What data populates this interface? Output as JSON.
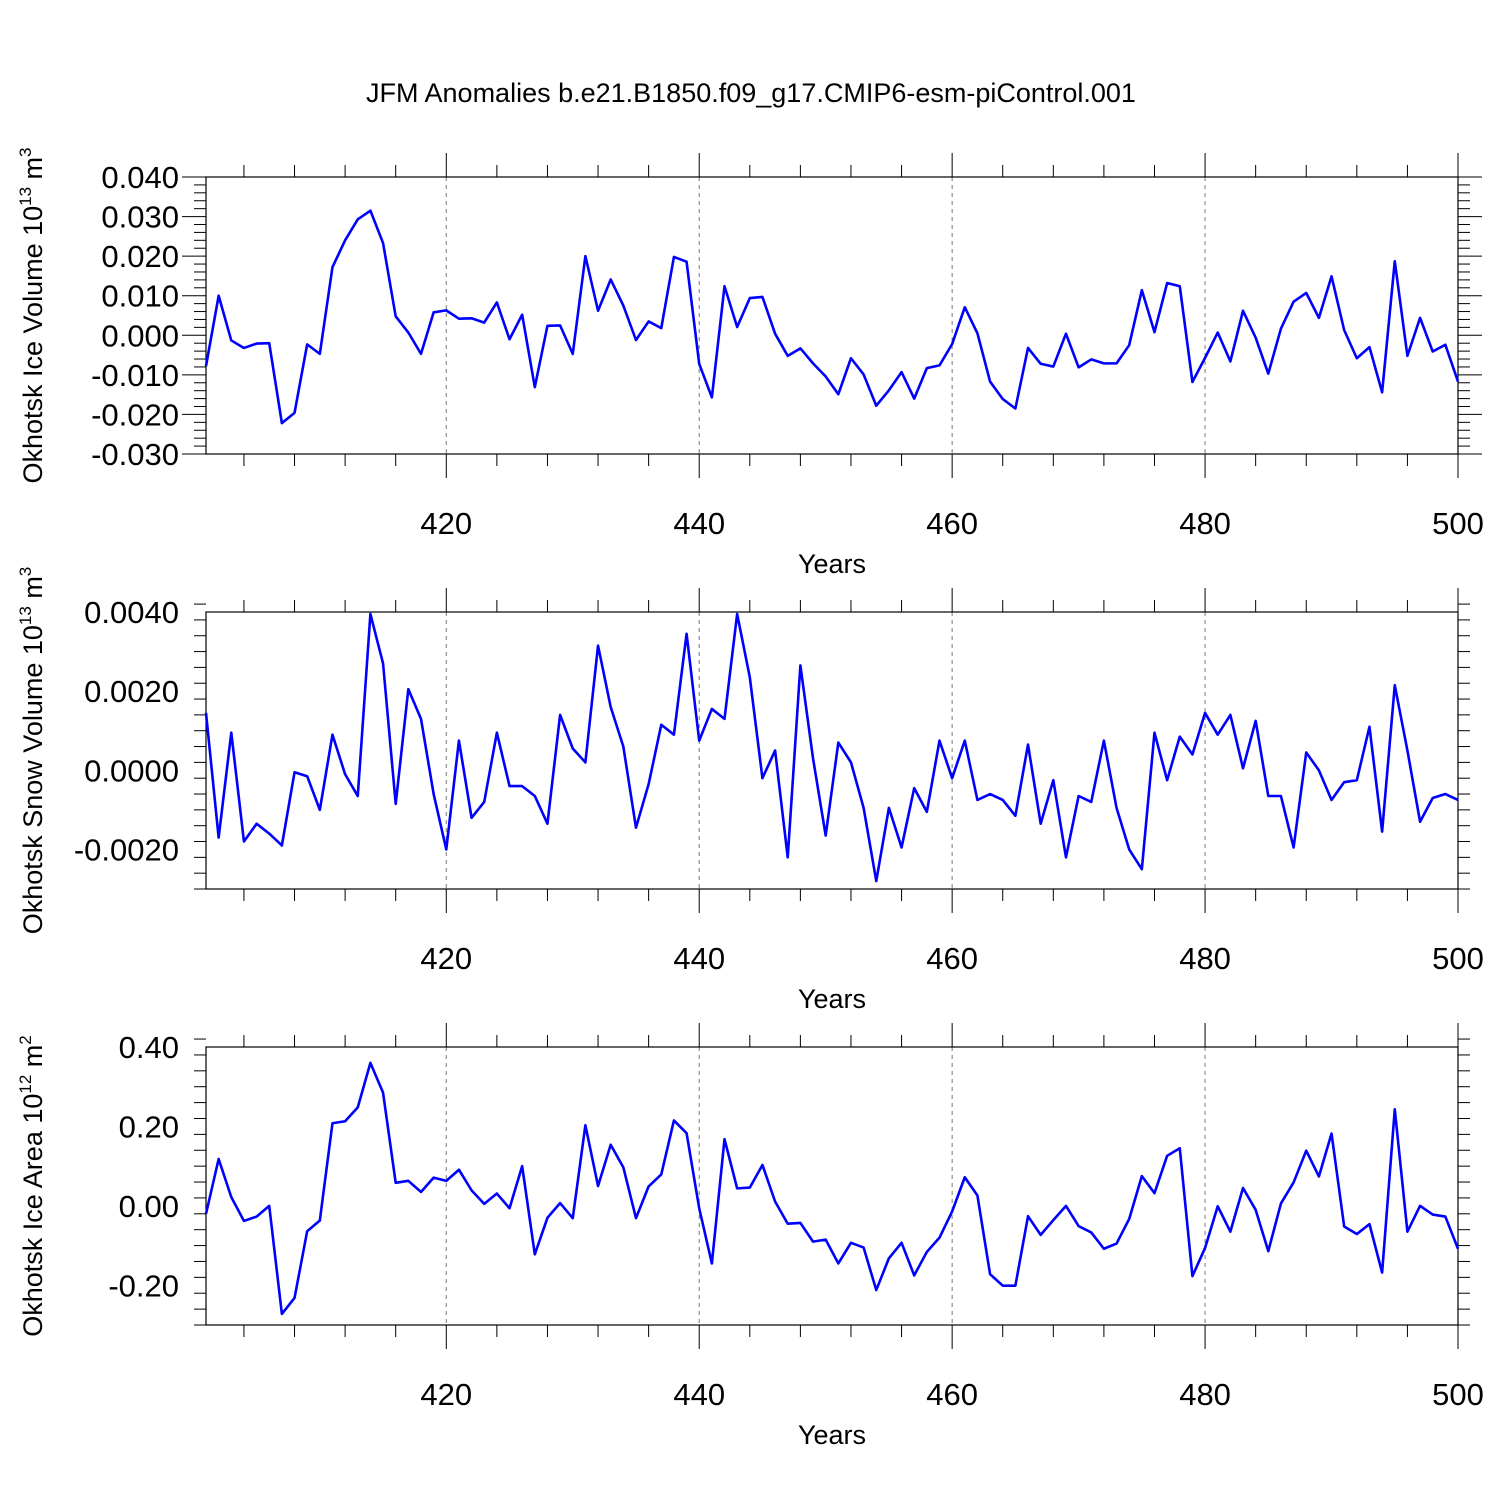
{
  "figure": {
    "title": "JFM Anomalies b.e21.B1850.f09_g17.CMIP6-esm-piControl.001",
    "line_color": "#0000ff"
  },
  "chart_data": [
    {
      "type": "line",
      "ylabel": "Okhotsk Ice Volume 10",
      "ylabel_exp": "13",
      "ylabel_unit": " m",
      "ylabel_unit_exp": "3",
      "xlabel": "Years",
      "xlim": [
        401,
        500
      ],
      "ylim": [
        -0.03,
        0.04
      ],
      "xticks": [
        420,
        440,
        460,
        480,
        500
      ],
      "xtick_labels": [
        "420",
        "440",
        "460",
        "480",
        "500"
      ],
      "yticks": [
        -0.03,
        -0.02,
        -0.01,
        0.0,
        0.01,
        0.02,
        0.03,
        0.04
      ],
      "ytick_labels": [
        "-0.030",
        "-0.020",
        "-0.010",
        "0.000",
        "0.010",
        "0.020",
        "0.030",
        "0.040"
      ],
      "series": [
        {
          "x_start": 401,
          "values": [
            -0.0078,
            0.01,
            -0.0013,
            -0.0032,
            -0.0021,
            -0.002,
            -0.0222,
            -0.0196,
            -0.0023,
            -0.0047,
            0.0172,
            0.024,
            0.0293,
            0.0315,
            0.0233,
            0.0048,
            0.0007,
            -0.0047,
            0.0058,
            0.0063,
            0.0042,
            0.0043,
            0.0032,
            0.0083,
            -0.001,
            0.0052,
            -0.0131,
            0.0024,
            0.0025,
            -0.0047,
            0.02,
            0.0062,
            0.0141,
            0.0075,
            -0.0012,
            0.0035,
            0.0018,
            0.0198,
            0.0186,
            -0.0072,
            -0.0157,
            0.0124,
            0.0021,
            0.0094,
            0.0097,
            0.0004,
            -0.0052,
            -0.0033,
            -0.0071,
            -0.0104,
            -0.0149,
            -0.0058,
            -0.0099,
            -0.0178,
            -0.0139,
            -0.0093,
            -0.016,
            -0.0083,
            -0.0076,
            -0.0022,
            0.0071,
            0.0005,
            -0.0117,
            -0.0161,
            -0.0185,
            -0.0032,
            -0.0072,
            -0.0079,
            0.0004,
            -0.0081,
            -0.0061,
            -0.0071,
            -0.0071,
            -0.0025,
            0.0114,
            0.0008,
            0.0132,
            0.0124,
            -0.0118,
            -0.0057,
            0.0007,
            -0.0066,
            0.0062,
            -0.0006,
            -0.0097,
            0.0017,
            0.0085,
            0.0107,
            0.0044,
            0.0149,
            0.0013,
            -0.0058,
            -0.003,
            -0.0144,
            0.0187,
            -0.0052,
            0.0044,
            -0.0041,
            -0.0024,
            -0.0117
          ]
        }
      ]
    },
    {
      "type": "line",
      "ylabel": "Okhotsk Snow Volume 10",
      "ylabel_exp": "13",
      "ylabel_unit": " m",
      "ylabel_unit_exp": "3",
      "xlabel": "Years",
      "xlim": [
        401,
        500
      ],
      "ylim": [
        -0.003,
        0.004
      ],
      "xticks": [
        420,
        440,
        460,
        480,
        500
      ],
      "xtick_labels": [
        "420",
        "440",
        "460",
        "480",
        "500"
      ],
      "yticks": [
        -0.002,
        0.0,
        0.002,
        0.004
      ],
      "ytick_labels": [
        "-0.0020",
        "0.0000",
        "0.0020",
        "0.0040"
      ],
      "series": [
        {
          "x_start": 401,
          "values": [
            0.00145,
            -0.0017,
            0.00095,
            -0.0018,
            -0.00135,
            -0.0016,
            -0.0019,
            -5e-05,
            -0.00015,
            -0.001,
            0.0009,
            -0.0001,
            -0.00065,
            0.00395,
            0.0027,
            -0.00085,
            0.00205,
            0.0013,
            -0.0006,
            -0.002,
            0.00075,
            -0.0012,
            -0.0008,
            0.00095,
            -0.0004,
            -0.0004,
            -0.00065,
            -0.00135,
            0.0014,
            0.00055,
            0.0002,
            0.00315,
            0.0016,
            0.0006,
            -0.00145,
            -0.00035,
            0.00115,
            0.0009,
            0.00345,
            0.00075,
            0.00155,
            0.0013,
            0.00395,
            0.00235,
            -0.0002,
            0.0005,
            -0.0022,
            0.00265,
            0.0003,
            -0.00165,
            0.0007,
            0.0002,
            -0.00095,
            -0.0028,
            -0.00095,
            -0.00195,
            -0.00045,
            -0.00105,
            0.00075,
            -0.0002,
            0.00075,
            -0.00075,
            -0.0006,
            -0.00075,
            -0.00115,
            0.00065,
            -0.00135,
            -0.00025,
            -0.0022,
            -0.00065,
            -0.0008,
            0.00075,
            -0.00095,
            -0.002,
            -0.0025,
            0.00095,
            -0.00025,
            0.00085,
            0.0004,
            0.00145,
            0.0009,
            0.0014,
            5e-05,
            0.00125,
            -0.00065,
            -0.00065,
            -0.00195,
            0.00045,
            0.0,
            -0.00075,
            -0.0003,
            -0.00025,
            0.0011,
            -0.00155,
            0.00215,
            0.0005,
            -0.0013,
            -0.0007,
            -0.0006,
            -0.00075
          ]
        }
      ]
    },
    {
      "type": "line",
      "ylabel": "Okhotsk Ice Area 10",
      "ylabel_exp": "12",
      "ylabel_unit": " m",
      "ylabel_unit_exp": "2",
      "xlabel": "Years",
      "xlim": [
        401,
        500
      ],
      "ylim": [
        -0.3,
        0.4
      ],
      "xticks": [
        420,
        440,
        460,
        480,
        500
      ],
      "xtick_labels": [
        "420",
        "440",
        "460",
        "480",
        "500"
      ],
      "yticks": [
        -0.2,
        0.0,
        0.2,
        0.4
      ],
      "ytick_labels": [
        "-0.20",
        "0.00",
        "0.20",
        "0.40"
      ],
      "series": [
        {
          "x_start": 401,
          "values": [
            -0.02,
            0.118,
            0.022,
            -0.038,
            -0.027,
            0.0,
            -0.272,
            -0.232,
            -0.064,
            -0.037,
            0.208,
            0.213,
            0.248,
            0.36,
            0.285,
            0.058,
            0.063,
            0.035,
            0.071,
            0.063,
            0.091,
            0.039,
            0.005,
            0.031,
            -0.006,
            0.1,
            -0.122,
            -0.03,
            0.007,
            -0.031,
            0.203,
            0.05,
            0.154,
            0.097,
            -0.031,
            0.049,
            0.079,
            0.215,
            0.183,
            -0.006,
            -0.145,
            0.168,
            0.044,
            0.046,
            0.103,
            0.011,
            -0.045,
            -0.043,
            -0.09,
            -0.085,
            -0.145,
            -0.093,
            -0.105,
            -0.212,
            -0.132,
            -0.093,
            -0.175,
            -0.116,
            -0.08,
            -0.014,
            0.072,
            0.026,
            -0.172,
            -0.201,
            -0.201,
            -0.026,
            -0.073,
            -0.036,
            0.0,
            -0.051,
            -0.067,
            -0.108,
            -0.095,
            -0.033,
            0.075,
            0.032,
            0.126,
            0.145,
            -0.177,
            -0.106,
            -0.001,
            -0.065,
            0.045,
            -0.01,
            -0.114,
            0.006,
            0.059,
            0.139,
            0.074,
            0.182,
            -0.052,
            -0.071,
            -0.046,
            -0.168,
            0.243,
            -0.065,
            0.0,
            -0.022,
            -0.027,
            -0.108
          ]
        }
      ]
    }
  ]
}
